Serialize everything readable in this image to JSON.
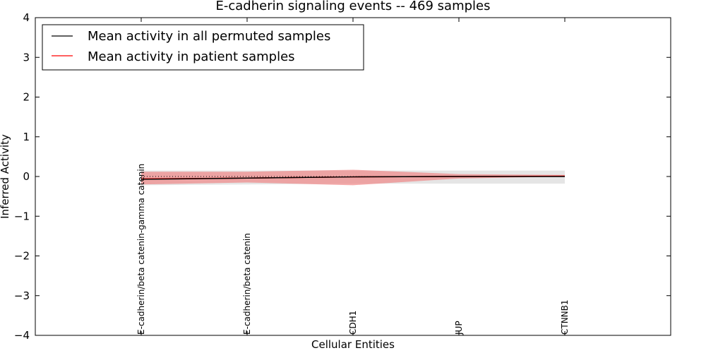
{
  "chart_data": {
    "type": "line",
    "title": "E-cadherin signaling events -- 469 samples",
    "xlabel": "Cellular Entities",
    "ylabel": "Inferred Activity",
    "ylim": [
      -4,
      4
    ],
    "yticks": [
      4,
      3,
      2,
      1,
      0,
      -1,
      -2,
      -3,
      -4
    ],
    "ytick_labels": [
      "4",
      "3",
      "2",
      "1",
      "0",
      "−1",
      "−2",
      "−3",
      "−4"
    ],
    "categories": [
      "E-cadherin/beta catenin-gamma catenin",
      "E-cadherin/beta catenin",
      "CDH1",
      "JUP",
      "CTNNB1"
    ],
    "legend": {
      "position": "top-left",
      "entries": [
        {
          "label": "Mean activity in all permuted samples",
          "color": "#000000"
        },
        {
          "label": "Mean activity in patient samples",
          "color": "#ff0000"
        }
      ]
    },
    "series": [
      {
        "name": "Mean activity in all permuted samples",
        "color": "#000000",
        "values": [
          -0.07,
          -0.04,
          -0.01,
          0.0,
          0.0
        ],
        "band_lower": [
          -0.22,
          -0.2,
          -0.18,
          -0.18,
          -0.18
        ],
        "band_upper": [
          0.15,
          0.15,
          0.15,
          0.15,
          0.15
        ],
        "band_color": "#cccccc"
      },
      {
        "name": "Mean activity in patient samples",
        "color": "#ff0000",
        "values": [
          -0.06,
          -0.04,
          -0.01,
          0.0,
          0.01
        ],
        "band_lower": [
          -0.2,
          -0.15,
          -0.22,
          -0.05,
          0.0
        ],
        "band_upper": [
          0.12,
          0.12,
          0.17,
          0.06,
          0.04
        ],
        "band_color": "#f08080"
      }
    ]
  }
}
